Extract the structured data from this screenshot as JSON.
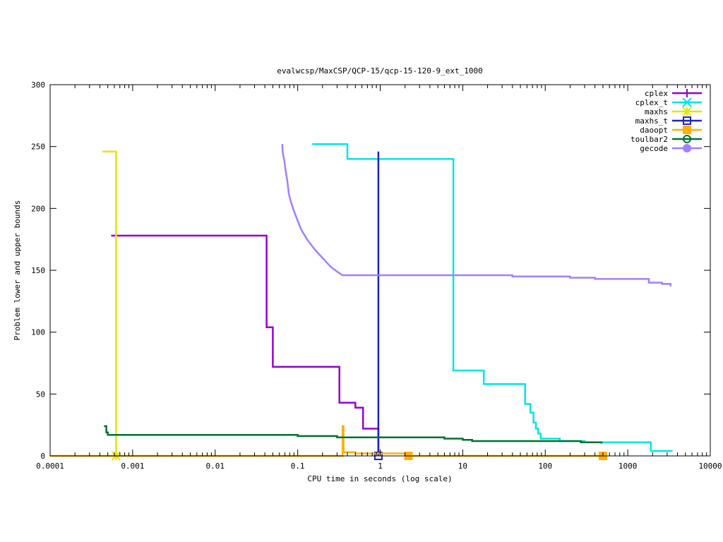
{
  "chart_data": {
    "type": "line",
    "title": "evalwcsp/MaxCSP/QCP-15/qcp-15-120-9_ext_1000",
    "xlabel": "CPU time in seconds (log scale)",
    "ylabel": "Problem lower and upper bounds",
    "xscale": "log",
    "xlim": [
      0.0001,
      10000
    ],
    "ylim": [
      0,
      300
    ],
    "xticks": [
      {
        "value": 0.0001,
        "label": "0.0001"
      },
      {
        "value": 0.001,
        "label": "0.001"
      },
      {
        "value": 0.01,
        "label": "0.01"
      },
      {
        "value": 0.1,
        "label": "0.1"
      },
      {
        "value": 1,
        "label": "1"
      },
      {
        "value": 10,
        "label": "10"
      },
      {
        "value": 100,
        "label": "100"
      },
      {
        "value": 1000,
        "label": "1000"
      },
      {
        "value": 10000,
        "label": "10000"
      }
    ],
    "yticks": [
      {
        "value": 0,
        "label": "0"
      },
      {
        "value": 50,
        "label": "50"
      },
      {
        "value": 100,
        "label": "100"
      },
      {
        "value": 150,
        "label": "150"
      },
      {
        "value": 200,
        "label": "200"
      },
      {
        "value": 250,
        "label": "250"
      },
      {
        "value": 300,
        "label": "300"
      }
    ],
    "grid": false,
    "legend_position": "top-right",
    "series": [
      {
        "name": "cplex",
        "color": "#9400d3",
        "marker": "plus",
        "points": [
          [
            0.00055,
            178
          ],
          [
            0.042,
            178
          ],
          [
            0.042,
            104
          ],
          [
            0.05,
            104
          ],
          [
            0.05,
            72
          ],
          [
            0.32,
            72
          ],
          [
            0.32,
            43
          ],
          [
            0.5,
            43
          ],
          [
            0.5,
            39
          ],
          [
            0.62,
            39
          ],
          [
            0.62,
            22
          ],
          [
            0.95,
            22
          ],
          [
            0.95,
            0
          ]
        ],
        "marker_points": []
      },
      {
        "name": "cplex_t",
        "color": "#00e5e5",
        "marker": "x",
        "points": [
          [
            0.15,
            252
          ],
          [
            0.4,
            252
          ],
          [
            0.4,
            240
          ],
          [
            7.7,
            240
          ],
          [
            7.7,
            69
          ],
          [
            18,
            69
          ],
          [
            18,
            58
          ],
          [
            57,
            58
          ],
          [
            57,
            42
          ],
          [
            66,
            42
          ],
          [
            66,
            35
          ],
          [
            72,
            35
          ],
          [
            72,
            27
          ],
          [
            77,
            27
          ],
          [
            77,
            22
          ],
          [
            82,
            22
          ],
          [
            82,
            18
          ],
          [
            88,
            18
          ],
          [
            88,
            14
          ],
          [
            150,
            14
          ],
          [
            150,
            12
          ],
          [
            300,
            12
          ],
          [
            300,
            11
          ],
          [
            1900,
            11
          ],
          [
            1900,
            4
          ],
          [
            3500,
            4
          ]
        ],
        "marker_points": []
      },
      {
        "name": "maxhs",
        "color": "#e5e500",
        "marker": "star",
        "points": [
          [
            0.00043,
            246
          ],
          [
            0.00063,
            246
          ],
          [
            0.00063,
            0
          ]
        ],
        "marker_points": [
          [
            0.00063,
            0
          ]
        ]
      },
      {
        "name": "maxhs_t",
        "color": "#2020c0",
        "marker": "box",
        "points": [
          [
            0.95,
            246
          ],
          [
            0.95,
            0
          ]
        ],
        "marker_points": [
          [
            0.95,
            0
          ]
        ]
      },
      {
        "name": "daoopt",
        "color": "#ffb000",
        "marker": "filled-box",
        "points": [
          [
            0.0001,
            0
          ],
          [
            0.35,
            0
          ],
          [
            0.35,
            24
          ],
          [
            0.36,
            24
          ],
          [
            0.36,
            3
          ],
          [
            0.5,
            3
          ],
          [
            0.5,
            2
          ],
          [
            2.1,
            2
          ],
          [
            2.1,
            0
          ],
          [
            500,
            0
          ]
        ],
        "marker_points": [
          [
            2.2,
            0
          ],
          [
            500,
            0
          ]
        ]
      },
      {
        "name": "toulbar2",
        "color": "#007030",
        "marker": "circle",
        "points": [
          [
            0.00045,
            24
          ],
          [
            0.00048,
            24
          ],
          [
            0.00048,
            19
          ],
          [
            0.0005,
            19
          ],
          [
            0.0005,
            17
          ],
          [
            0.1,
            17
          ],
          [
            0.1,
            16
          ],
          [
            0.3,
            16
          ],
          [
            0.3,
            15
          ],
          [
            6,
            15
          ],
          [
            6,
            14
          ],
          [
            10,
            14
          ],
          [
            10,
            13
          ],
          [
            13,
            13
          ],
          [
            13,
            12
          ],
          [
            270,
            12
          ],
          [
            270,
            11
          ],
          [
            480,
            11
          ],
          [
            480,
            10
          ]
        ],
        "marker_points": []
      },
      {
        "name": "gecode",
        "color": "#a080ff",
        "marker": "filled-circle",
        "points": [
          [
            0.065,
            252
          ],
          [
            0.066,
            245
          ],
          [
            0.069,
            238
          ],
          [
            0.071,
            232
          ],
          [
            0.075,
            222
          ],
          [
            0.078,
            212
          ],
          [
            0.083,
            205
          ],
          [
            0.09,
            198
          ],
          [
            0.1,
            190
          ],
          [
            0.11,
            183
          ],
          [
            0.13,
            175
          ],
          [
            0.16,
            167
          ],
          [
            0.2,
            160
          ],
          [
            0.25,
            153
          ],
          [
            0.3,
            149
          ],
          [
            0.35,
            146
          ],
          [
            40,
            146
          ],
          [
            40,
            145
          ],
          [
            200,
            145
          ],
          [
            200,
            144
          ],
          [
            400,
            144
          ],
          [
            400,
            143
          ],
          [
            1800,
            143
          ],
          [
            1800,
            140
          ],
          [
            2600,
            140
          ],
          [
            2600,
            139
          ],
          [
            3300,
            139
          ],
          [
            3300,
            137
          ]
        ],
        "marker_points": []
      }
    ]
  }
}
